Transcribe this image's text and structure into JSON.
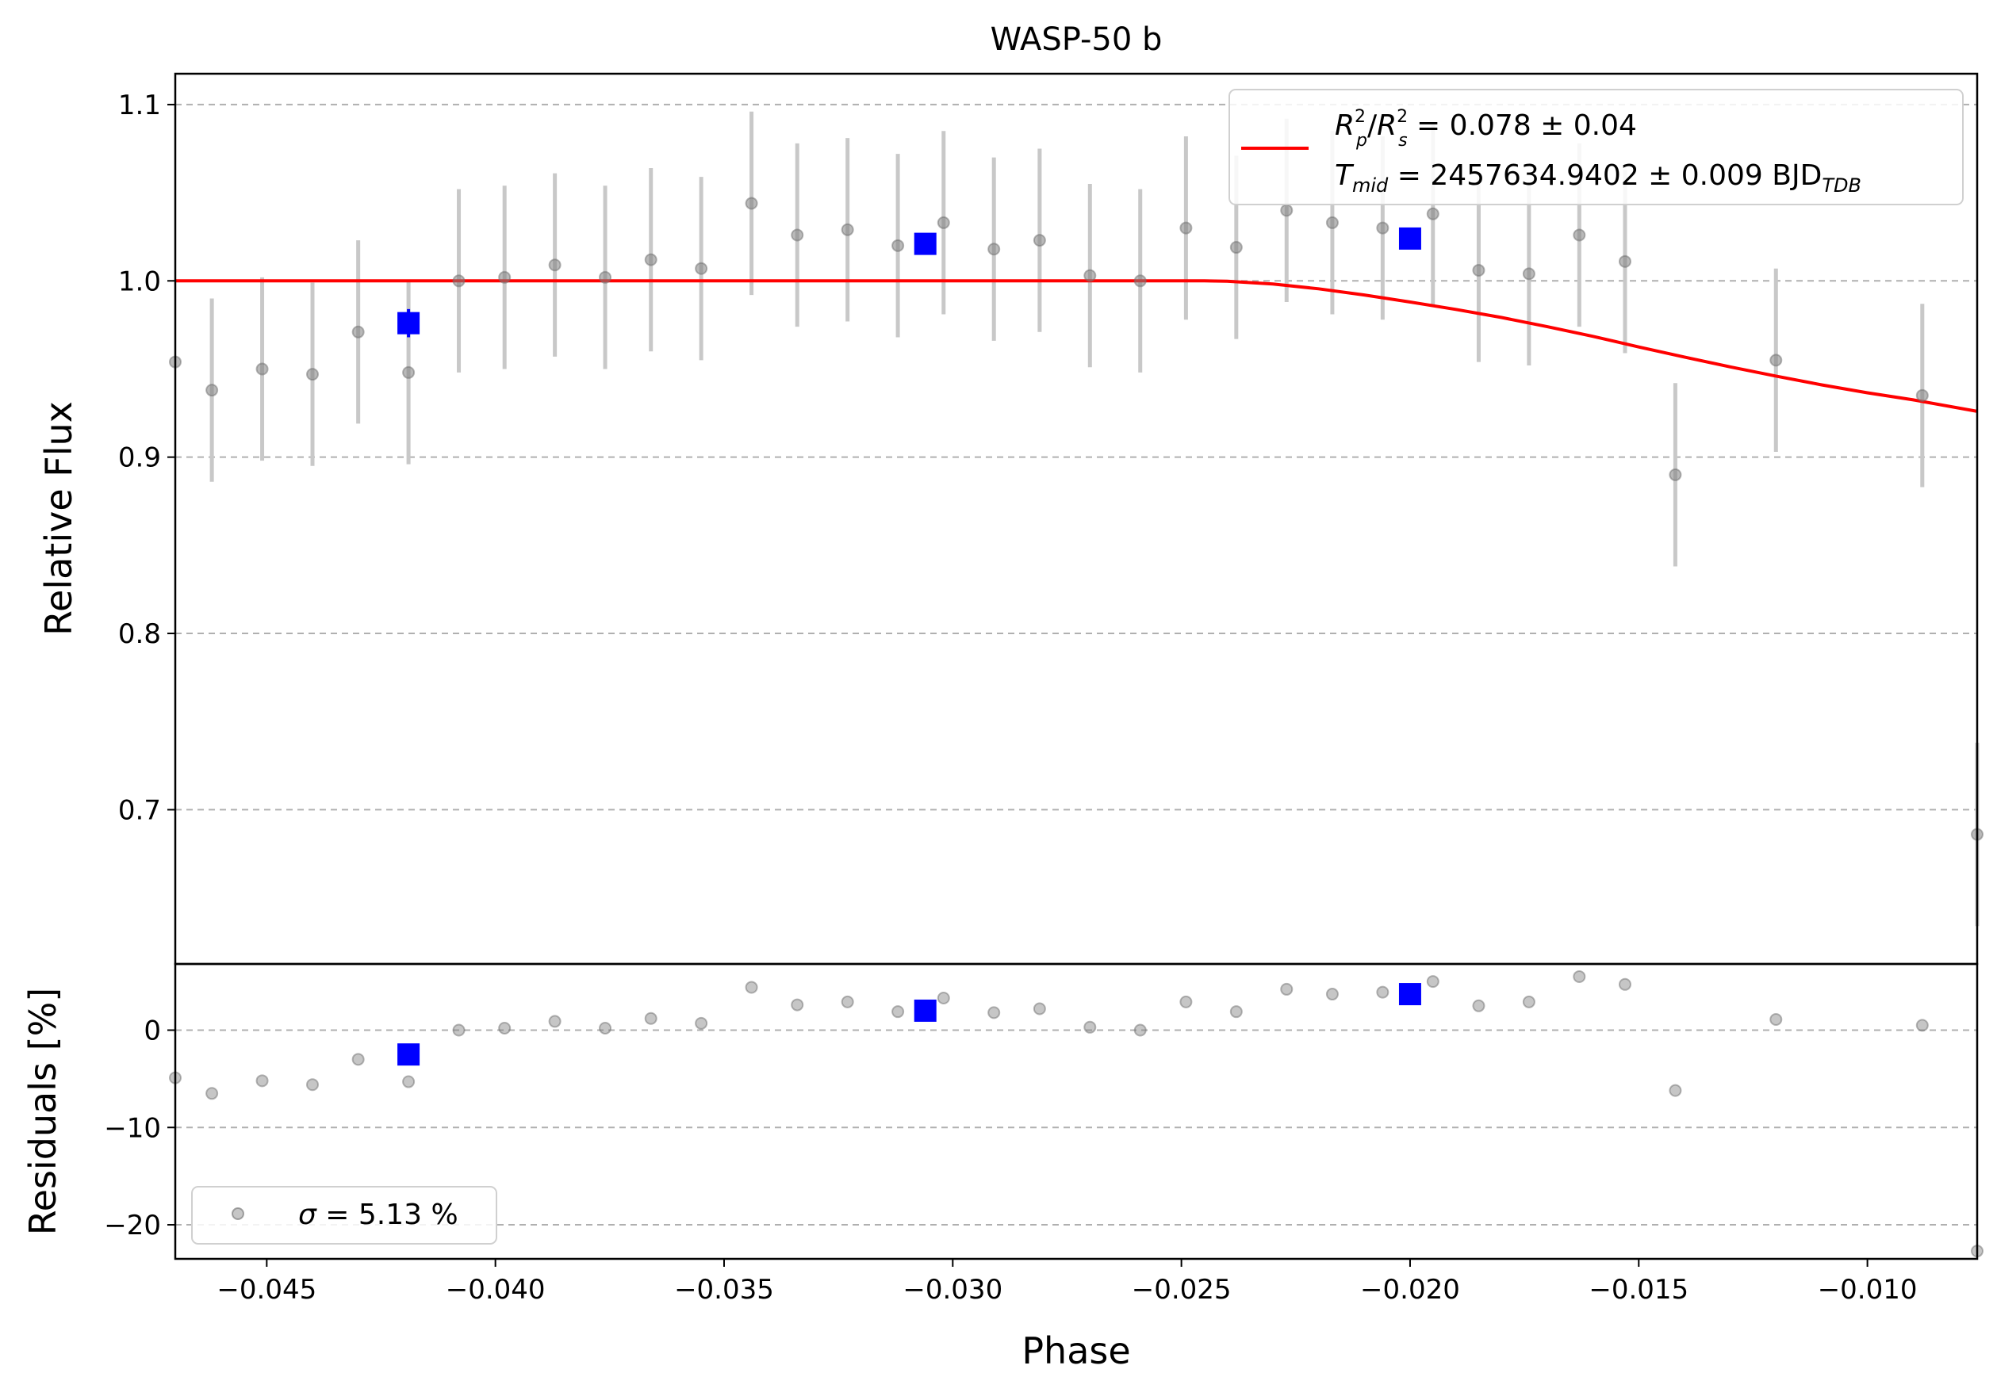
{
  "chart_data": {
    "type": "scatter",
    "title": "WASP-50 b",
    "xlabel": "Phase",
    "xlim": [
      -0.047,
      -0.0076
    ],
    "x_ticks": [
      -0.045,
      -0.04,
      -0.035,
      -0.03,
      -0.025,
      -0.02,
      -0.015,
      -0.01
    ],
    "x_tick_labels": [
      "−0.045",
      "−0.040",
      "−0.035",
      "−0.030",
      "−0.025",
      "−0.020",
      "−0.015",
      "−0.010"
    ],
    "top_panel": {
      "ylabel": "Relative Flux",
      "ylim": [
        0.6125,
        1.1175
      ],
      "y_ticks": [
        0.7,
        0.8,
        0.9,
        1.0,
        1.1
      ],
      "y_tick_labels": [
        "0.7",
        "0.8",
        "0.9",
        "1.0",
        "1.1"
      ],
      "grid": "y-dashed",
      "legend_position": "upper right",
      "legend": {
        "line1_base": "R",
        "line1_sub1": "p",
        "line1_sup1": "2",
        "line1_slash": "/",
        "line1_base2": "R",
        "line1_sub2": "s",
        "line1_sup2": "2",
        "line1_value": " = 0.078 ± 0.04",
        "line2_base": "T",
        "line2_sub": "mid",
        "line2_value": " = 2457634.9402 ± 0.009 BJD",
        "line2_unit_sub": "TDB"
      },
      "data_points": [
        {
          "x": -0.047,
          "y": 0.954,
          "err": 0.0
        },
        {
          "x": -0.0462,
          "y": 0.938,
          "err": 0.052
        },
        {
          "x": -0.0451,
          "y": 0.95,
          "err": 0.052
        },
        {
          "x": -0.044,
          "y": 0.947,
          "err": 0.052
        },
        {
          "x": -0.043,
          "y": 0.971,
          "err": 0.052
        },
        {
          "x": -0.0419,
          "y": 0.948,
          "err": 0.052
        },
        {
          "x": -0.0408,
          "y": 1.0,
          "err": 0.052
        },
        {
          "x": -0.0398,
          "y": 1.002,
          "err": 0.052
        },
        {
          "x": -0.0387,
          "y": 1.009,
          "err": 0.052
        },
        {
          "x": -0.0376,
          "y": 1.002,
          "err": 0.052
        },
        {
          "x": -0.0366,
          "y": 1.012,
          "err": 0.052
        },
        {
          "x": -0.0355,
          "y": 1.007,
          "err": 0.052
        },
        {
          "x": -0.0344,
          "y": 1.044,
          "err": 0.052
        },
        {
          "x": -0.0334,
          "y": 1.026,
          "err": 0.052
        },
        {
          "x": -0.0323,
          "y": 1.029,
          "err": 0.052
        },
        {
          "x": -0.0312,
          "y": 1.02,
          "err": 0.052
        },
        {
          "x": -0.0302,
          "y": 1.033,
          "err": 0.052
        },
        {
          "x": -0.0291,
          "y": 1.018,
          "err": 0.052
        },
        {
          "x": -0.0281,
          "y": 1.023,
          "err": 0.052
        },
        {
          "x": -0.027,
          "y": 1.003,
          "err": 0.052
        },
        {
          "x": -0.0259,
          "y": 1.0,
          "err": 0.052
        },
        {
          "x": -0.0249,
          "y": 1.03,
          "err": 0.052
        },
        {
          "x": -0.0238,
          "y": 1.019,
          "err": 0.052
        },
        {
          "x": -0.0227,
          "y": 1.04,
          "err": 0.052
        },
        {
          "x": -0.0217,
          "y": 1.033,
          "err": 0.052
        },
        {
          "x": -0.0206,
          "y": 1.03,
          "err": 0.052
        },
        {
          "x": -0.0195,
          "y": 1.038,
          "err": 0.052
        },
        {
          "x": -0.0185,
          "y": 1.006,
          "err": 0.052
        },
        {
          "x": -0.0174,
          "y": 1.004,
          "err": 0.052
        },
        {
          "x": -0.0163,
          "y": 1.026,
          "err": 0.052
        },
        {
          "x": -0.0153,
          "y": 1.011,
          "err": 0.052
        },
        {
          "x": -0.0142,
          "y": 0.89,
          "err": 0.052
        },
        {
          "x": -0.012,
          "y": 0.955,
          "err": 0.052
        },
        {
          "x": -0.0088,
          "y": 0.935,
          "err": 0.052
        },
        {
          "x": -0.0076,
          "y": 0.686,
          "err": 0.052
        }
      ],
      "binned_points": [
        {
          "x": -0.0419,
          "y": 0.976,
          "err": 0.008
        },
        {
          "x": -0.0306,
          "y": 1.021,
          "err": 0.003
        },
        {
          "x": -0.02,
          "y": 1.024,
          "err": 0.003
        }
      ],
      "model_curve": [
        {
          "x": -0.047,
          "y": 1.0
        },
        {
          "x": -0.0245,
          "y": 1.0
        },
        {
          "x": -0.024,
          "y": 0.9998
        },
        {
          "x": -0.023,
          "y": 0.9982
        },
        {
          "x": -0.022,
          "y": 0.9955
        },
        {
          "x": -0.021,
          "y": 0.992
        },
        {
          "x": -0.02,
          "y": 0.988
        },
        {
          "x": -0.019,
          "y": 0.9838
        },
        {
          "x": -0.018,
          "y": 0.9792
        },
        {
          "x": -0.017,
          "y": 0.974
        },
        {
          "x": -0.016,
          "y": 0.9685
        },
        {
          "x": -0.015,
          "y": 0.9625
        },
        {
          "x": -0.014,
          "y": 0.9568
        },
        {
          "x": -0.013,
          "y": 0.9512
        },
        {
          "x": -0.012,
          "y": 0.946
        },
        {
          "x": -0.011,
          "y": 0.941
        },
        {
          "x": -0.01,
          "y": 0.9365
        },
        {
          "x": -0.009,
          "y": 0.9325
        },
        {
          "x": -0.0076,
          "y": 0.926
        }
      ]
    },
    "bottom_panel": {
      "ylabel": "Residuals [%]",
      "ylim": [
        -23.5,
        6.8
      ],
      "y_ticks": [
        -20,
        -10,
        0
      ],
      "y_tick_labels": [
        "−20",
        "−10",
        "0"
      ],
      "grid": "y-dashed",
      "legend_position": "lower left",
      "legend": {
        "sigma_symbol": "σ",
        "sigma_text": " = 5.13 %"
      },
      "data_points": [
        {
          "x": -0.047,
          "y": -4.9
        },
        {
          "x": -0.0462,
          "y": -6.5
        },
        {
          "x": -0.0451,
          "y": -5.2
        },
        {
          "x": -0.044,
          "y": -5.6
        },
        {
          "x": -0.043,
          "y": -3.0
        },
        {
          "x": -0.0419,
          "y": -5.3
        },
        {
          "x": -0.0408,
          "y": 0.0
        },
        {
          "x": -0.0398,
          "y": 0.2
        },
        {
          "x": -0.0387,
          "y": 0.9
        },
        {
          "x": -0.0376,
          "y": 0.2
        },
        {
          "x": -0.0366,
          "y": 1.2
        },
        {
          "x": -0.0355,
          "y": 0.7
        },
        {
          "x": -0.0344,
          "y": 4.4
        },
        {
          "x": -0.0334,
          "y": 2.6
        },
        {
          "x": -0.0323,
          "y": 2.9
        },
        {
          "x": -0.0312,
          "y": 1.9
        },
        {
          "x": -0.0302,
          "y": 3.3
        },
        {
          "x": -0.0291,
          "y": 1.8
        },
        {
          "x": -0.0281,
          "y": 2.2
        },
        {
          "x": -0.027,
          "y": 0.3
        },
        {
          "x": -0.0259,
          "y": 0.0
        },
        {
          "x": -0.0249,
          "y": 2.9
        },
        {
          "x": -0.0238,
          "y": 1.9
        },
        {
          "x": -0.0227,
          "y": 4.2
        },
        {
          "x": -0.0217,
          "y": 3.7
        },
        {
          "x": -0.0206,
          "y": 3.9
        },
        {
          "x": -0.0195,
          "y": 5.0
        },
        {
          "x": -0.0185,
          "y": 2.5
        },
        {
          "x": -0.0174,
          "y": 2.9
        },
        {
          "x": -0.0163,
          "y": 5.5
        },
        {
          "x": -0.0153,
          "y": 4.7
        },
        {
          "x": -0.0142,
          "y": -6.2
        },
        {
          "x": -0.012,
          "y": 1.1
        },
        {
          "x": -0.0088,
          "y": 0.5
        },
        {
          "x": -0.0076,
          "y": -22.7
        }
      ],
      "binned_points": [
        {
          "x": -0.0419,
          "y": -2.5
        },
        {
          "x": -0.0306,
          "y": 2.0
        },
        {
          "x": -0.02,
          "y": 3.7
        }
      ]
    },
    "colors": {
      "data": "#808080",
      "errorbar": "#c8c8c8",
      "binned": "#0000ff",
      "model": "#ff0000",
      "grid": "#b0b0b0"
    }
  }
}
